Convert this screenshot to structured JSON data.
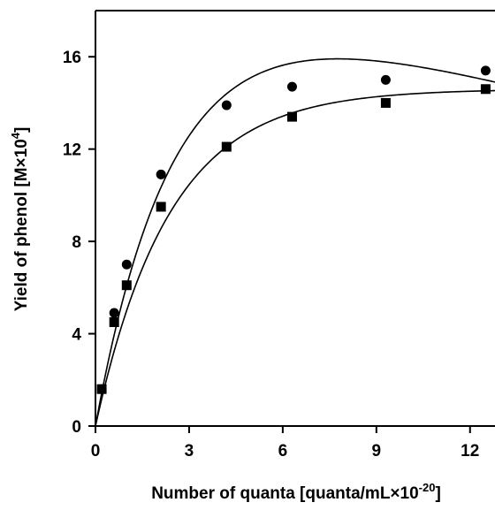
{
  "chart_data": {
    "type": "scatter",
    "title": "",
    "xlabel": "Number of quanta [quanta/mL×10",
    "xlabel_sup": "-20",
    "xlabel_tail": "]",
    "ylabel": "Yield of phenol [M×10",
    "ylabel_sup": "4",
    "ylabel_tail": "]",
    "xlim": [
      0,
      12.8
    ],
    "ylim": [
      0,
      18
    ],
    "xticks": [
      0,
      3,
      6,
      9,
      12
    ],
    "yticks": [
      0,
      4,
      8,
      12,
      16
    ],
    "series": [
      {
        "marker": "circle",
        "x": [
          0.2,
          0.6,
          1.0,
          2.1,
          4.2,
          6.3,
          9.3,
          12.5
        ],
        "y": [
          1.6,
          4.9,
          7.0,
          10.9,
          13.9,
          14.7,
          15.0,
          15.4
        ],
        "fit": {
          "form": "a*(1-exp(-b*x)) - c*x",
          "a": 19.5,
          "b": 0.4,
          "c": 0.35
        }
      },
      {
        "marker": "square",
        "x": [
          0.2,
          0.6,
          1.0,
          2.1,
          4.2,
          6.3,
          9.3,
          12.5
        ],
        "y": [
          1.6,
          4.5,
          6.1,
          9.5,
          12.1,
          13.4,
          14.0,
          14.6
        ],
        "fit": {
          "form": "a*(1-exp(-b*x))",
          "a": 14.6,
          "b": 0.42,
          "c": 0
        }
      }
    ],
    "grid": false
  }
}
